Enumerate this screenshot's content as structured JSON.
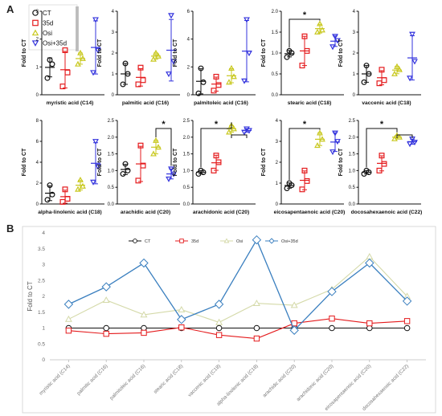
{
  "panel_labels": {
    "a": "A",
    "b": "B"
  },
  "colors": {
    "CT": "#111111",
    "35d": "#e41a1c",
    "Osi": "#c8c81e",
    "Osi+35d": "#3333dd",
    "B_CT": "#111111",
    "B_35d": "#e41a1c",
    "B_Osi": "#d4d9a8",
    "B_Osi+35d": "#3a7fbf"
  },
  "chart_data": [
    {
      "type": "scatter",
      "panel": "A",
      "ylabel": "Fold to CT",
      "legend": {
        "placement": "top-left",
        "entries": [
          "CT",
          "35d",
          "Osi",
          "Osi+35d"
        ]
      },
      "groups": [
        "CT",
        "35d",
        "Osi",
        "Osi+35d"
      ],
      "subplots": [
        {
          "title": "myristic acid (C14)",
          "ylim": [
            0,
            3
          ],
          "ticks": [
            "0",
            "1",
            "2",
            "3"
          ],
          "points": [
            [
              0.6,
              1.1,
              1.25
            ],
            [
              0.3,
              0.8,
              1.6
            ],
            [
              1.1,
              1.3,
              1.5
            ],
            [
              0.8,
              1.6,
              2.7
            ]
          ],
          "sig": null
        },
        {
          "title": "palmitic acid (C16)",
          "ylim": [
            0,
            4
          ],
          "ticks": [
            "0",
            "1",
            "2",
            "3",
            "4"
          ],
          "points": [
            [
              0.5,
              1.0,
              1.5
            ],
            [
              0.5,
              0.7,
              1.3
            ],
            [
              1.7,
              1.85,
              2.0
            ],
            [
              1.0,
              1.6,
              3.8
            ]
          ],
          "sig": null
        },
        {
          "title": "palmitoleic acid (C16)",
          "ylim": [
            0,
            6
          ],
          "ticks": [
            "0",
            "2",
            "4",
            "6"
          ],
          "points": [
            [
              0.1,
              0.9,
              1.9
            ],
            [
              0.3,
              0.7,
              1.3
            ],
            [
              0.9,
              1.3,
              1.9
            ],
            [
              1.0,
              3.0,
              5.4
            ]
          ],
          "sig": null
        },
        {
          "title": "stearic acid (C18)",
          "ylim": [
            0,
            2
          ],
          "ticks": [
            "0.0",
            "0.5",
            "1.0",
            "1.5",
            "2.0"
          ],
          "points": [
            [
              0.9,
              1.0,
              1.05
            ],
            [
              0.7,
              1.05,
              1.4
            ],
            [
              1.5,
              1.55,
              1.7
            ],
            [
              1.15,
              1.3,
              1.4
            ]
          ],
          "sig": {
            "from": 0,
            "to": 2,
            "label": "*"
          }
        },
        {
          "title": "vaccenic acid (C18)",
          "ylim": [
            0,
            4
          ],
          "ticks": [
            "0",
            "1",
            "2",
            "3",
            "4"
          ],
          "points": [
            [
              0.6,
              1.0,
              1.4
            ],
            [
              0.55,
              0.7,
              1.2
            ],
            [
              1.0,
              1.2,
              1.35
            ],
            [
              0.8,
              1.6,
              2.9
            ]
          ],
          "sig": null
        },
        {
          "title": "alpha-linolenic acid (C18)",
          "ylim": [
            0,
            8
          ],
          "ticks": [
            "0",
            "2",
            "4",
            "6",
            "8"
          ],
          "points": [
            [
              0.4,
              0.9,
              1.8
            ],
            [
              0.2,
              0.5,
              1.4
            ],
            [
              1.4,
              1.7,
              2.3
            ],
            [
              2.1,
              3.6,
              6.0
            ]
          ],
          "sig": null
        },
        {
          "title": "arachidic acid (C20)",
          "ylim": [
            0,
            2.5
          ],
          "ticks": [
            "0.0",
            "0.5",
            "1.0",
            "1.5",
            "2.0",
            "2.5"
          ],
          "points": [
            [
              0.9,
              1.0,
              1.2
            ],
            [
              0.7,
              1.15,
              1.75
            ],
            [
              1.5,
              1.7,
              1.9
            ],
            [
              0.75,
              0.9,
              1.05
            ]
          ],
          "sig": {
            "from": 2,
            "to": 3,
            "label": "*"
          }
        },
        {
          "title": "arachidonic acid (C20)",
          "ylim": [
            0,
            2.5
          ],
          "ticks": [
            "0.0",
            "0.5",
            "1.0",
            "1.5",
            "2.0",
            "2.5"
          ],
          "points": [
            [
              0.9,
              0.95,
              1.0
            ],
            [
              1.0,
              1.25,
              1.45
            ],
            [
              2.15,
              2.25,
              2.35
            ],
            [
              2.15,
              2.2,
              2.25
            ]
          ],
          "sig": {
            "from": 0,
            "to": 2,
            "label": "*",
            "bracket2": [
              2,
              3
            ]
          }
        },
        {
          "title": "eicosapentaenoic acid (C20)",
          "ylim": [
            0,
            4
          ],
          "ticks": [
            "0",
            "1",
            "2",
            "3",
            "4"
          ],
          "points": [
            [
              0.75,
              0.9,
              1.0
            ],
            [
              0.7,
              1.1,
              1.6
            ],
            [
              2.8,
              3.1,
              3.4
            ],
            [
              2.5,
              3.0,
              3.4
            ]
          ],
          "sig": {
            "from": 0,
            "to": 2,
            "label": "*"
          }
        },
        {
          "title": "docosahexaenoic acid (C22)",
          "ylim": [
            0,
            2.5
          ],
          "ticks": [
            "0.0",
            "0.5",
            "1.0",
            "1.5",
            "2.0",
            "2.5"
          ],
          "points": [
            [
              0.9,
              0.95,
              1.0
            ],
            [
              1.0,
              1.2,
              1.45
            ],
            [
              1.95,
              2.0,
              2.05
            ],
            [
              1.8,
              1.85,
              1.95
            ]
          ],
          "sig": {
            "from": 0,
            "to": 2,
            "label": "*",
            "bracket2": [
              2,
              3
            ]
          }
        }
      ]
    },
    {
      "type": "line",
      "panel": "B",
      "ylabel": "Fold to CT",
      "ylim": [
        0,
        4
      ],
      "yticks": [
        "0",
        "0.5",
        "1",
        "1.5",
        "2",
        "2.5",
        "3",
        "3.5",
        "4"
      ],
      "legend": {
        "placement": "top-center",
        "entries": [
          "CT",
          "35d",
          "Osi",
          "Osi+35d"
        ]
      },
      "categories": [
        "myristic acid (C14)",
        "palmitic acid (C16)",
        "palmitoleic acid (C16)",
        "stearic acid (C18)",
        "vaccenic acid (C18)",
        "alpha-linolenic acid (C18)",
        "arachidic acid (C20)",
        "arachidonic acid (C20)",
        "eicosapentaenoic acid (C20)",
        "docosahexaenoic acid (C22)"
      ],
      "series": [
        {
          "name": "CT",
          "values": [
            1,
            1,
            1,
            1,
            1,
            1,
            1,
            1,
            1,
            1
          ]
        },
        {
          "name": "35d",
          "values": [
            0.92,
            0.82,
            0.85,
            1.02,
            0.78,
            0.67,
            1.15,
            1.3,
            1.15,
            1.22
          ]
        },
        {
          "name": "Osi",
          "values": [
            1.28,
            1.88,
            1.42,
            1.58,
            1.18,
            1.78,
            1.72,
            2.22,
            3.25,
            2.0
          ]
        },
        {
          "name": "Osi+35d",
          "values": [
            1.75,
            2.3,
            3.05,
            1.27,
            1.75,
            3.78,
            0.93,
            2.15,
            3.05,
            1.85
          ]
        }
      ]
    }
  ]
}
